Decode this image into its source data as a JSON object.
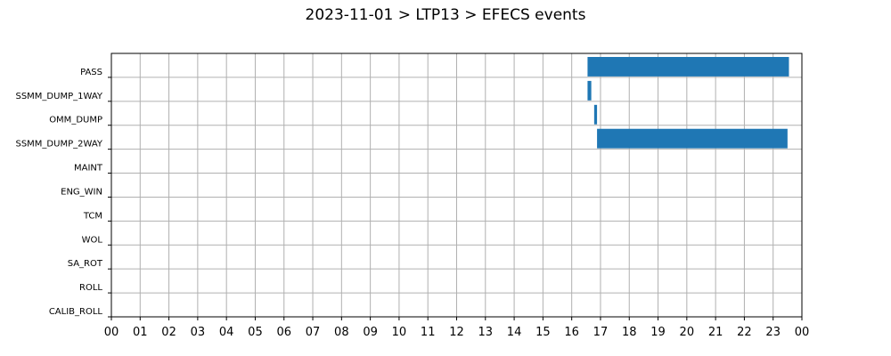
{
  "chart_data": {
    "type": "bar",
    "orientation": "horizontal-gantt",
    "title": "2023-11-01 > LTP13 > EFECS events",
    "categories": [
      "PASS",
      "SSMM_DUMP_1WAY",
      "OMM_DUMP",
      "SSMM_DUMP_2WAY",
      "MAINT",
      "ENG_WIN",
      "TCM",
      "WOL",
      "SA_ROT",
      "ROLL",
      "CALIB_ROLL"
    ],
    "x_tick_labels": [
      "00",
      "01",
      "02",
      "03",
      "04",
      "05",
      "06",
      "07",
      "08",
      "09",
      "10",
      "11",
      "12",
      "13",
      "14",
      "15",
      "16",
      "17",
      "18",
      "19",
      "20",
      "21",
      "22",
      "23",
      "00"
    ],
    "xlim": [
      0,
      24
    ],
    "x_unit": "hour",
    "grid": true,
    "bar_color": "#1f77b4",
    "series": [
      {
        "events": [
          {
            "category": "PASS",
            "start": 16.55,
            "end": 23.55
          },
          {
            "category": "SSMM_DUMP_1WAY",
            "start": 16.55,
            "end": 16.68
          },
          {
            "category": "OMM_DUMP",
            "start": 16.78,
            "end": 16.88
          },
          {
            "category": "SSMM_DUMP_2WAY",
            "start": 16.88,
            "end": 23.5
          }
        ]
      }
    ]
  }
}
